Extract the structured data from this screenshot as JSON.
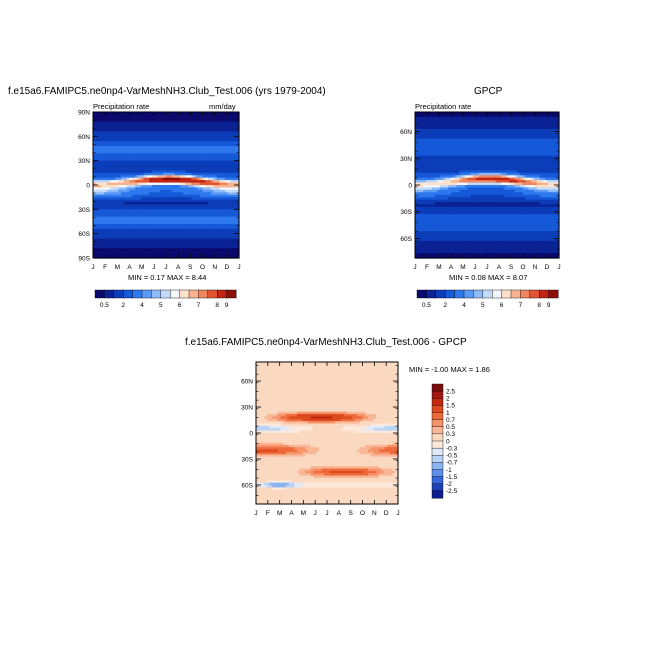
{
  "chart_data": [
    {
      "type": "heatmap",
      "title": "f.e15a6.FAMIPC5.ne0np4-VarMeshNH3.Club_Test.006 (yrs 1979-2004)",
      "subtitle_left": "Precipitation rate",
      "subtitle_right": "mm/day",
      "stats": "MIN =   0.17 MAX =   8.44",
      "x_ticks": [
        "J",
        "F",
        "M",
        "A",
        "M",
        "J",
        "J",
        "A",
        "S",
        "O",
        "N",
        "D",
        "J"
      ],
      "y_ticks": [
        "90N",
        "60N",
        "30N",
        "0",
        "30S",
        "60S",
        "90S"
      ],
      "ylim": [
        -90,
        90
      ],
      "legend_labels": [
        "0.5",
        "2",
        "4",
        "5",
        "6",
        "7",
        "8",
        "9"
      ]
    },
    {
      "type": "heatmap",
      "title": "GPCP",
      "subtitle_left": "Precipitation rate",
      "subtitle_right": "",
      "stats": "MIN =   0.08 MAX =   8.07",
      "x_ticks": [
        "J",
        "F",
        "M",
        "A",
        "M",
        "J",
        "J",
        "A",
        "S",
        "O",
        "N",
        "D",
        "J"
      ],
      "y_ticks": [
        "60N",
        "30N",
        "0",
        "30S",
        "60S"
      ],
      "ylim": [
        -80,
        80
      ],
      "legend_labels": [
        "0.5",
        "2",
        "4",
        "5",
        "6",
        "7",
        "8",
        "9"
      ]
    },
    {
      "type": "heatmap",
      "title": "f.e15a6.FAMIPC5.ne0np4-VarMeshNH3.Club_Test.006 - GPCP",
      "subtitle_left": "",
      "subtitle_right": "",
      "stats": "MIN =  -1.00 MAX =   1.86",
      "x_ticks": [
        "J",
        "F",
        "M",
        "A",
        "M",
        "J",
        "J",
        "A",
        "S",
        "O",
        "N",
        "D",
        "J"
      ],
      "y_ticks": [
        "60N",
        "30N",
        "0",
        "30S",
        "60S"
      ],
      "ylim": [
        -80,
        80
      ],
      "legend_labels": [
        "2.5",
        "2",
        "1.5",
        "1",
        "0.7",
        "0.5",
        "0.3",
        "0",
        "-0.3",
        "-0.5",
        "-0.7",
        "-1",
        "-1.5",
        "-2",
        "-2.5"
      ]
    }
  ],
  "colors": {
    "abs_palette": [
      "#0a0a6e",
      "#0b2294",
      "#0c3db8",
      "#1558d8",
      "#2e78ee",
      "#5a99f5",
      "#8fbaf8",
      "#c3dbfb",
      "#f3f6fb",
      "#fde0c8",
      "#f8b38e",
      "#f08660",
      "#e05432",
      "#c22414",
      "#8e0f07"
    ],
    "diff_palette": [
      "#7a0c0c",
      "#a31616",
      "#c42a12",
      "#dc4a1e",
      "#ee6a3a",
      "#f5936a",
      "#f9b795",
      "#fbd9c1",
      "#fde9dc",
      "#dfe9f7",
      "#b9d3f6",
      "#8ab5f2",
      "#5b8fea",
      "#3566dd",
      "#1b3fb8",
      "#0d1f8c"
    ]
  }
}
